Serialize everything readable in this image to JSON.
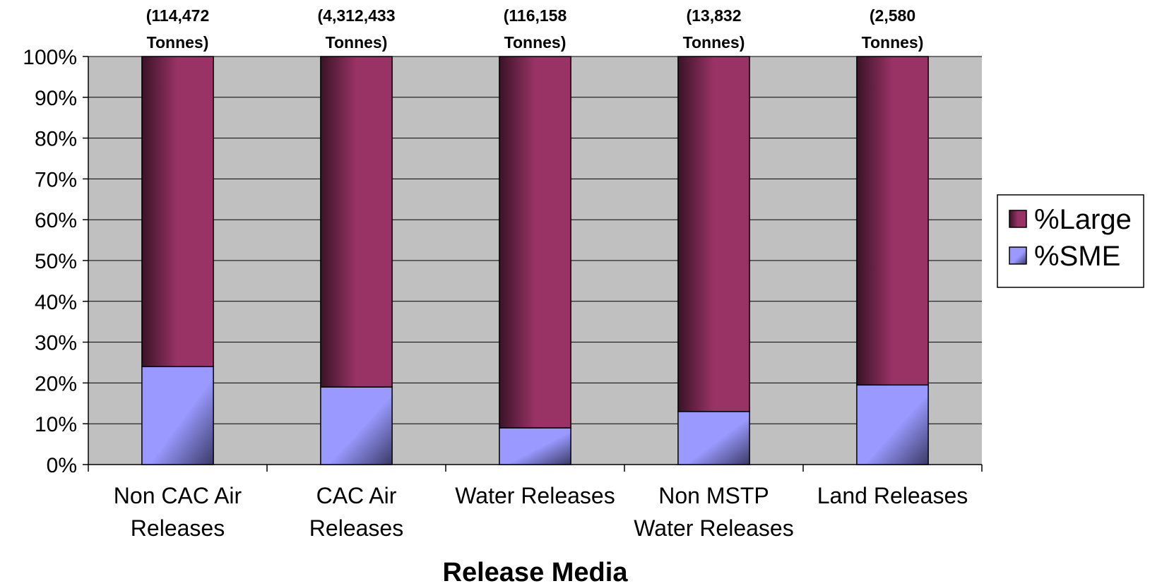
{
  "chart_data": {
    "type": "bar",
    "stacked": true,
    "percent_stacked": true,
    "categories": [
      [
        "Non CAC Air",
        "Releases"
      ],
      [
        "CAC Air",
        "Releases"
      ],
      [
        "Water Releases"
      ],
      [
        "Non MSTP",
        "Water Releases"
      ],
      [
        "Land Releases"
      ]
    ],
    "annotations": [
      [
        "(114,472",
        "Tonnes)"
      ],
      [
        "(4,312,433",
        "Tonnes)"
      ],
      [
        "(116,158",
        "Tonnes)"
      ],
      [
        "(13,832",
        "Tonnes)"
      ],
      [
        "(2,580",
        "Tonnes)"
      ]
    ],
    "series": [
      {
        "name": "%SME",
        "values": [
          24,
          19,
          9,
          13,
          19.5
        ],
        "color": "#9999ff"
      },
      {
        "name": "%Large",
        "values": [
          76,
          81,
          91,
          87,
          80.5
        ],
        "color": "#993366"
      }
    ],
    "xlabel": "Release Media",
    "ylabel": "",
    "ylim": [
      0,
      100
    ],
    "yticks": [
      "0%",
      "10%",
      "20%",
      "30%",
      "40%",
      "50%",
      "60%",
      "70%",
      "80%",
      "90%",
      "100%"
    ],
    "legend": {
      "position": "right",
      "entries": [
        "%Large",
        "%SME"
      ]
    },
    "plot_background": "#c0c0c0",
    "grid": true
  }
}
